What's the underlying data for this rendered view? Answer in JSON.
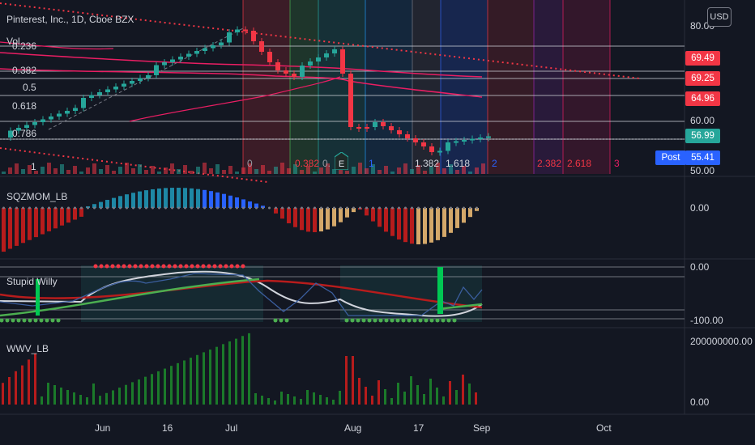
{
  "header": {
    "symbol_title": "Pinterest, Inc., 1D, Cboe BZX",
    "currency_button": "USD"
  },
  "price_pane": {
    "vol_label": "Vol",
    "fib_levels": [
      "0.236",
      "0.382",
      "0.5",
      "0.618",
      "0.786",
      "1"
    ],
    "fib_time_labels": [
      "0",
      "0.382",
      "0.",
      "1",
      "1.382",
      "1.618",
      "2",
      "2.382",
      "2.618",
      "3"
    ],
    "axis_labels": [
      "80.00",
      "60.00",
      "50.00"
    ],
    "price_tags": [
      {
        "value": "69.49",
        "color": "#f23645"
      },
      {
        "value": "69.25",
        "color": "#f23645"
      },
      {
        "value": "64.96",
        "color": "#f23645"
      },
      {
        "value": "56.99",
        "color": "#26a69a"
      }
    ],
    "post_tag": {
      "label": "Post",
      "value": "55.41",
      "color": "#2962ff"
    },
    "earnings_badge": "E"
  },
  "sqzmom_pane": {
    "title": "SQZMOM_LB",
    "axis_labels": [
      "0.00"
    ]
  },
  "willy_pane": {
    "title": "Stupid Willy",
    "axis_labels": [
      "0.00",
      "-100.00"
    ]
  },
  "wwv_pane": {
    "title": "WWV_LB",
    "axis_labels": [
      "200000000.00",
      "0.00"
    ]
  },
  "time_axis": {
    "labels": [
      "Jun",
      "16",
      "Jul",
      "Aug",
      "17",
      "Sep",
      "Oct"
    ]
  }
}
